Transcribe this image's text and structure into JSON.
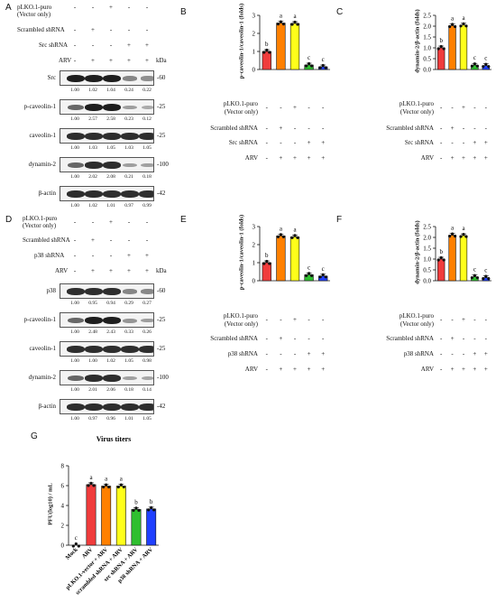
{
  "panels": {
    "A": "A",
    "B": "B",
    "C": "C",
    "D": "D",
    "E": "E",
    "F": "F",
    "G": "G"
  },
  "kda": "kDa",
  "blot_A": {
    "conditions": [
      {
        "label": "pLKO.1-puro",
        "label2": "(Vector only)",
        "signs": [
          "-",
          "-",
          "+",
          "-",
          "-"
        ]
      },
      {
        "label": "Scrambled shRNA",
        "signs": [
          "-",
          "+",
          "-",
          "-",
          "-"
        ]
      },
      {
        "label": "Src shRNA",
        "signs": [
          "-",
          "-",
          "-",
          "+",
          "+"
        ]
      },
      {
        "label": "ARV",
        "signs": [
          "-",
          "+",
          "+",
          "+",
          "+"
        ]
      }
    ],
    "rows": [
      {
        "name": "Src",
        "mw": "-60",
        "values": [
          "1.00",
          "1.02",
          "1.04",
          "0.24",
          "0.22"
        ],
        "intensity": [
          1.0,
          1.0,
          1.0,
          0.35,
          0.3
        ]
      },
      {
        "name": "p-caveolin-1",
        "mw": "-25",
        "values": [
          "1.00",
          "2.57",
          "2.58",
          "0.23",
          "0.12"
        ],
        "intensity": [
          0.55,
          1.0,
          1.0,
          0.2,
          0.12
        ]
      },
      {
        "name": "caveolin-1",
        "mw": "-25",
        "values": [
          "1.00",
          "1.03",
          "1.05",
          "1.03",
          "1.05"
        ],
        "intensity": [
          0.9,
          0.9,
          0.9,
          0.9,
          0.9
        ]
      },
      {
        "name": "dynamin-2",
        "mw": "-100",
        "values": [
          "1.00",
          "2.02",
          "2.08",
          "0.21",
          "0.18"
        ],
        "intensity": [
          0.55,
          0.9,
          0.9,
          0.2,
          0.18
        ]
      },
      {
        "name": "β-actin",
        "mw": "-42",
        "values": [
          "1.00",
          "1.02",
          "1.01",
          "0.97",
          "0.99"
        ],
        "intensity": [
          0.9,
          0.9,
          0.9,
          0.9,
          0.9
        ]
      }
    ]
  },
  "blot_D": {
    "conditions": [
      {
        "label": "pLKO.1-puro",
        "label2": "(Vector only)",
        "signs": [
          "-",
          "-",
          "+",
          "-",
          "-"
        ]
      },
      {
        "label": "Scrambled shRNA",
        "signs": [
          "-",
          "+",
          "-",
          "-",
          "-"
        ]
      },
      {
        "label": "p38 shRNA",
        "signs": [
          "-",
          "-",
          "-",
          "+",
          "+"
        ]
      },
      {
        "label": "ARV",
        "signs": [
          "-",
          "+",
          "+",
          "+",
          "+"
        ]
      }
    ],
    "rows": [
      {
        "name": "p38",
        "mw": "-60",
        "values": [
          "1.00",
          "0.95",
          "0.94",
          "0.29",
          "0.27"
        ],
        "intensity": [
          0.9,
          0.9,
          0.9,
          0.35,
          0.33
        ]
      },
      {
        "name": "p-caveolin-1",
        "mw": "-25",
        "values": [
          "1.00",
          "2.48",
          "2.43",
          "0.33",
          "0.26"
        ],
        "intensity": [
          0.55,
          1.0,
          1.0,
          0.25,
          0.2
        ]
      },
      {
        "name": "caveolin-1",
        "mw": "-25",
        "values": [
          "1.00",
          "1.00",
          "1.02",
          "1.05",
          "0.98"
        ],
        "intensity": [
          0.9,
          0.9,
          0.9,
          0.9,
          0.9
        ]
      },
      {
        "name": "dynamin-2",
        "mw": "-100",
        "values": [
          "1.00",
          "2.01",
          "2.06",
          "0.18",
          "0.14"
        ],
        "intensity": [
          0.55,
          0.9,
          0.9,
          0.18,
          0.15
        ]
      },
      {
        "name": "β-actin",
        "mw": "-42",
        "values": [
          "1.00",
          "0.97",
          "0.96",
          "1.01",
          "1.05"
        ],
        "intensity": [
          0.9,
          0.9,
          0.9,
          0.9,
          0.9
        ]
      }
    ]
  },
  "colors": [
    "#f03c3c",
    "#ff8000",
    "#ffff1a",
    "#2fbf2f",
    "#2040ff"
  ],
  "chart_data": [
    {
      "panel": "B",
      "type": "bar",
      "title": "",
      "xlabel": "",
      "ylabel": "p-caveolin-1/caveolin-1 (folds)",
      "ylim": [
        0,
        3
      ],
      "yticks": [
        "0",
        "1",
        "2",
        "3"
      ],
      "values": [
        1.0,
        2.57,
        2.55,
        0.25,
        0.15
      ],
      "letters": [
        "b",
        "a",
        "a",
        "c",
        "c"
      ],
      "conditions": [
        {
          "label": "pLKO.1-puro",
          "label2": "(Vector only)",
          "signs": [
            "-",
            "-",
            "+",
            "-",
            "-"
          ]
        },
        {
          "label": "Scrambled shRNA",
          "signs": [
            "-",
            "+",
            "-",
            "-",
            "-"
          ]
        },
        {
          "label": "Src shRNA",
          "signs": [
            "-",
            "-",
            "-",
            "+",
            "+"
          ]
        },
        {
          "label": "ARV",
          "signs": [
            "-",
            "+",
            "+",
            "+",
            "+"
          ]
        }
      ]
    },
    {
      "panel": "C",
      "type": "bar",
      "title": "",
      "xlabel": "",
      "ylabel": "dynamin-2/β-actin (folds)",
      "ylim": [
        0,
        2.5
      ],
      "yticks": [
        "0.0",
        "0.5",
        "1.0",
        "1.5",
        "2.0",
        "2.5"
      ],
      "values": [
        1.0,
        2.02,
        2.05,
        0.2,
        0.18
      ],
      "letters": [
        "b",
        "a",
        "a",
        "c",
        "c"
      ],
      "conditions": [
        {
          "label": "pLKO.1-puro",
          "label2": "(Vector only)",
          "signs": [
            "-",
            "-",
            "+",
            "-",
            "-"
          ]
        },
        {
          "label": "Scrambled shRNA",
          "signs": [
            "-",
            "+",
            "-",
            "-",
            "-"
          ]
        },
        {
          "label": "Src shRNA",
          "signs": [
            "-",
            "-",
            "-",
            "+",
            "+"
          ]
        },
        {
          "label": "ARV",
          "signs": [
            "-",
            "+",
            "+",
            "+",
            "+"
          ]
        }
      ]
    },
    {
      "panel": "E",
      "type": "bar",
      "title": "",
      "xlabel": "",
      "ylabel": "p-caveolin-1/caveolin-1 (folds)",
      "ylim": [
        0,
        3
      ],
      "yticks": [
        "0",
        "1",
        "2",
        "3"
      ],
      "values": [
        1.0,
        2.48,
        2.43,
        0.33,
        0.26
      ],
      "letters": [
        "b",
        "a",
        "a",
        "c",
        "c"
      ],
      "conditions": [
        {
          "label": "pLKO.1-puro",
          "label2": "(Vector only)",
          "signs": [
            "-",
            "-",
            "+",
            "-",
            "-"
          ]
        },
        {
          "label": "Scrambled shRNA",
          "signs": [
            "-",
            "+",
            "-",
            "-",
            "-"
          ]
        },
        {
          "label": "p38 shRNA",
          "signs": [
            "-",
            "-",
            "-",
            "+",
            "+"
          ]
        },
        {
          "label": "ARV",
          "signs": [
            "-",
            "+",
            "+",
            "+",
            "+"
          ]
        }
      ]
    },
    {
      "panel": "F",
      "type": "bar",
      "title": "",
      "xlabel": "",
      "ylabel": "dynamin-2/β-actin (folds)",
      "ylim": [
        0,
        2.5
      ],
      "yticks": [
        "0.0",
        "0.5",
        "1.0",
        "1.5",
        "2.0",
        "2.5"
      ],
      "values": [
        1.0,
        2.1,
        2.08,
        0.18,
        0.14
      ],
      "letters": [
        "b",
        "a",
        "a",
        "c",
        "c"
      ],
      "conditions": [
        {
          "label": "pLKO.1-puro",
          "label2": "(Vector only)",
          "signs": [
            "-",
            "-",
            "+",
            "-",
            "-"
          ]
        },
        {
          "label": "Scrambled shRNA",
          "signs": [
            "-",
            "+",
            "-",
            "-",
            "-"
          ]
        },
        {
          "label": "p38 shRNA",
          "signs": [
            "-",
            "-",
            "-",
            "+",
            "+"
          ]
        },
        {
          "label": "ARV",
          "signs": [
            "-",
            "+",
            "+",
            "+",
            "+"
          ]
        }
      ]
    },
    {
      "panel": "G",
      "type": "bar",
      "title": "Virus titers",
      "xlabel": "",
      "ylabel": "PFU(log10) / mL",
      "ylim": [
        0,
        8
      ],
      "yticks": [
        "0",
        "2",
        "4",
        "6",
        "8"
      ],
      "categories": [
        "Mock",
        "ARV",
        "pLKO.1-vector + ARV",
        "scrambled shRNA + ARV",
        "src shRNA + ARV",
        "p38 shRNA + ARV"
      ],
      "values": [
        0,
        6.1,
        5.95,
        5.95,
        3.6,
        3.65
      ],
      "letters": [
        "c",
        "a",
        "a",
        "a",
        "b",
        "b"
      ],
      "colors": [
        "#ffffff",
        "#f03c3c",
        "#ff8000",
        "#ffff1a",
        "#2fbf2f",
        "#2040ff"
      ]
    }
  ]
}
